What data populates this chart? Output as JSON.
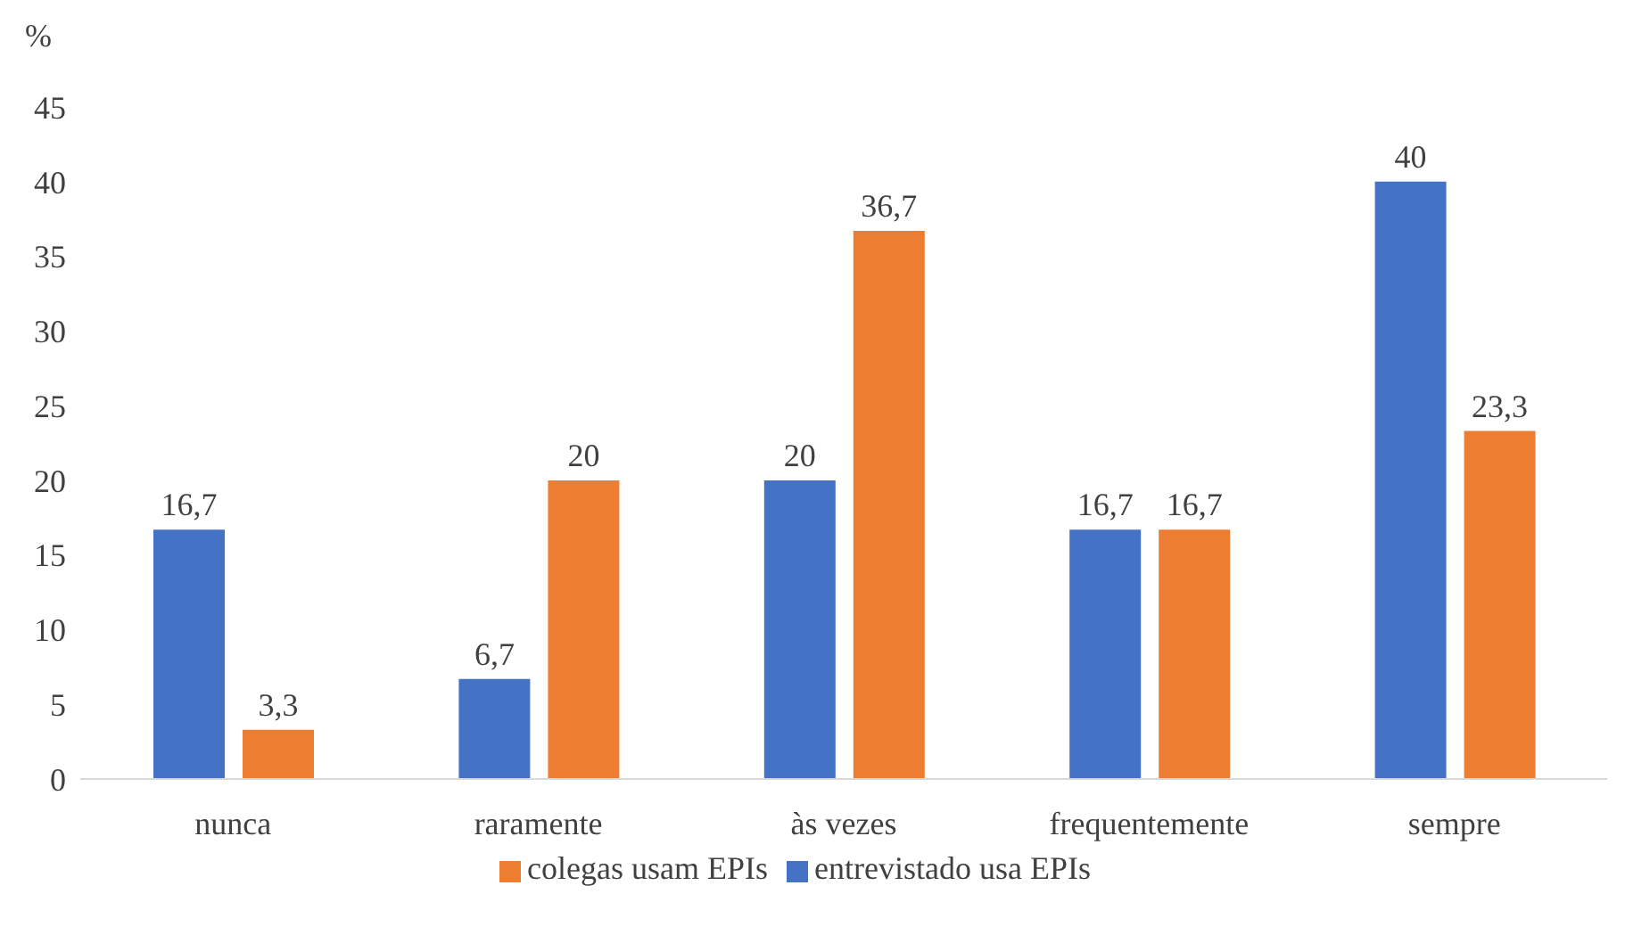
{
  "chart_data": {
    "type": "bar",
    "ylabel": "%",
    "categories": [
      "nunca",
      "raramente",
      "às vezes",
      "frequentemente",
      "sempre"
    ],
    "series": [
      {
        "name": "entrevistado usa EPIs",
        "color": "#4472c4",
        "values": [
          16.7,
          6.7,
          20,
          16.7,
          40
        ],
        "value_labels": [
          "16,7",
          "6,7",
          "20",
          "16,7",
          "40"
        ]
      },
      {
        "name": "colegas usam EPIs",
        "color": "#ed7d31",
        "values": [
          3.3,
          20,
          36.7,
          16.7,
          23.3
        ],
        "value_labels": [
          "3,3",
          "20",
          "36,7",
          "16,7",
          "23,3"
        ]
      }
    ],
    "ylim": [
      0,
      45
    ],
    "yticks": [
      0,
      5,
      10,
      15,
      20,
      25,
      30,
      35,
      40,
      45
    ],
    "grid": false,
    "legend": "bottom"
  }
}
